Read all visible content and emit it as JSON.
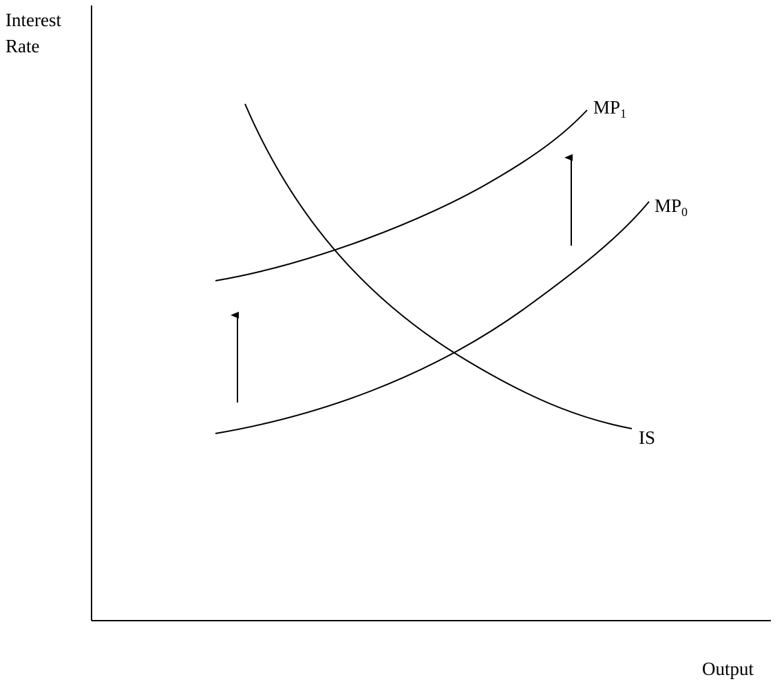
{
  "axes": {
    "y_label_line1": "Interest",
    "y_label_line2": "Rate",
    "x_label": "Output"
  },
  "curves": {
    "is": {
      "label": "IS"
    },
    "mp1": {
      "label": "MP",
      "subscript": "1"
    },
    "mp0": {
      "label": "MP",
      "subscript": "0"
    }
  },
  "shifts": {
    "direction": "up",
    "from": "MP0",
    "to": "MP1"
  },
  "colors": {
    "ink": "#000000",
    "background": "#ffffff"
  }
}
